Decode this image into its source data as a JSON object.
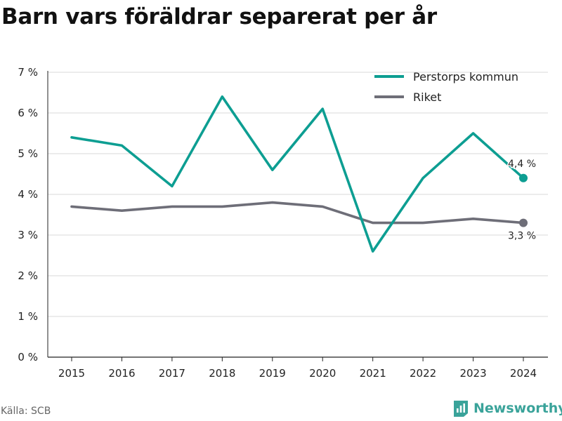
{
  "title": "Barn vars föräldrar separerat per år",
  "source": "Källa: SCB",
  "brand": {
    "name": "Newsworthy",
    "icon": "newsworthy-logo-icon"
  },
  "colors": {
    "kommun": "#0d9e92",
    "riket": "#6e6e78",
    "grid": "#d9d9d9",
    "axis": "#222222",
    "brand": "#3aa39a"
  },
  "chart_data": {
    "type": "line",
    "title": "Barn vars föräldrar separerat per år",
    "xlabel": "",
    "ylabel": "",
    "x": [
      "2015",
      "2016",
      "2017",
      "2018",
      "2019",
      "2020",
      "2021",
      "2022",
      "2023",
      "2024"
    ],
    "ylim": [
      0,
      7
    ],
    "yticks": [
      0,
      1,
      2,
      3,
      4,
      5,
      6,
      7
    ],
    "ytick_labels": [
      "0 %",
      "1 %",
      "2 %",
      "3 %",
      "4 %",
      "5 %",
      "6 %",
      "7 %"
    ],
    "grid": true,
    "legend": "top-right",
    "series": [
      {
        "name": "Perstorps kommun",
        "values": [
          5.4,
          5.2,
          4.2,
          6.4,
          4.6,
          6.1,
          2.6,
          4.4,
          5.5,
          4.4
        ],
        "end_label": "4,4 %"
      },
      {
        "name": "Riket",
        "values": [
          3.7,
          3.6,
          3.7,
          3.7,
          3.8,
          3.7,
          3.3,
          3.3,
          3.4,
          3.3
        ],
        "end_label": "3,3 %"
      }
    ]
  }
}
